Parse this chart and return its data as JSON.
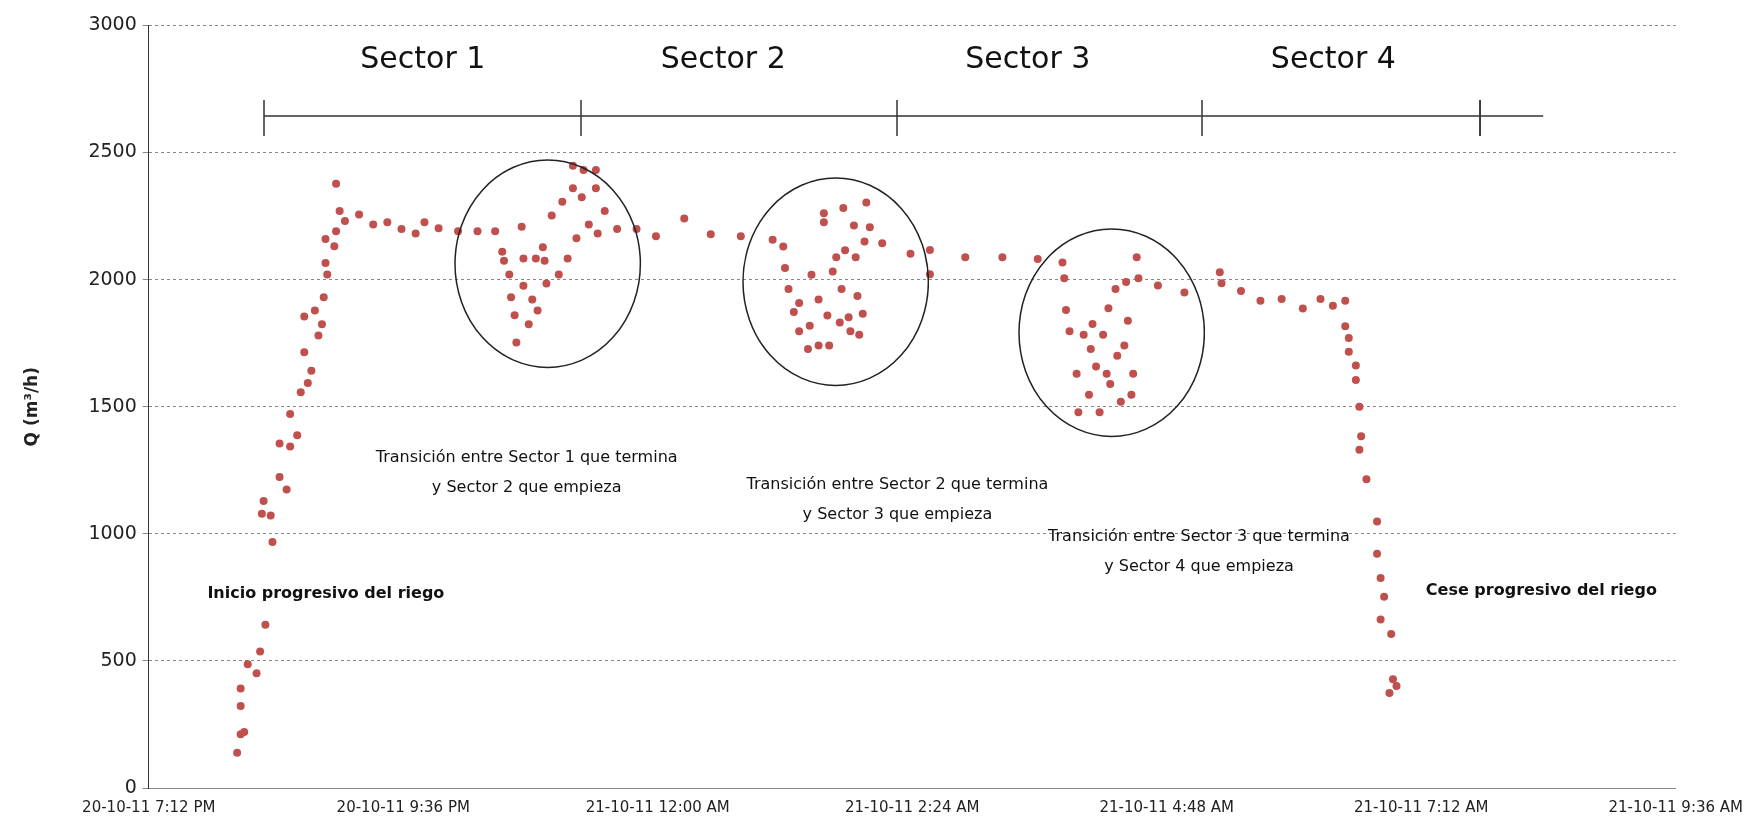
{
  "chart_data": {
    "type": "scatter",
    "ylabel": "Q (m³/h)",
    "marker": "circle",
    "grid": "y",
    "legend": false,
    "xlim": [
      "--10-20T19:12",
      "--10-21T09:36"
    ],
    "ylim": [
      0,
      3000
    ],
    "yticks": [
      0,
      500,
      1000,
      1500,
      2000,
      2500,
      3000
    ],
    "xticks": [
      {
        "value": "--10-20T19:12",
        "label": "20-10-11 7:12 PM"
      },
      {
        "value": "--10-20T21:36",
        "label": "20-10-11 9:36 PM"
      },
      {
        "value": "--10-21T00:00",
        "label": "21-10-11 12:00 AM"
      },
      {
        "value": "--10-21T02:24",
        "label": "21-10-11 2:24 AM"
      },
      {
        "value": "--10-21T04:48",
        "label": "21-10-11 4:48 AM"
      },
      {
        "value": "--10-21T07:12",
        "label": "21-10-11 7:12 AM"
      },
      {
        "value": "--10-21T09:36",
        "label": "21-10-11 9:36 AM"
      }
    ],
    "x": [
      "--10-20T20:02",
      "--10-20T20:04",
      "--10-20T20:06",
      "--10-20T20:04",
      "--10-20T20:04",
      "--10-20T20:08",
      "--10-20T20:13",
      "--10-20T20:15",
      "--10-20T20:18",
      "--10-20T20:22",
      "--10-20T20:16",
      "--10-20T20:21",
      "--10-20T20:17",
      "--10-20T20:26",
      "--10-20T20:30",
      "--10-20T20:26",
      "--10-20T20:32",
      "--10-20T20:32",
      "--10-20T20:36",
      "--10-20T20:38",
      "--10-20T20:42",
      "--10-20T20:40",
      "--10-20T20:44",
      "--10-20T20:40",
      "--10-20T20:46",
      "--10-20T20:48",
      "--10-20T20:50",
      "--10-20T20:51",
      "--10-20T20:53",
      "--10-20T20:52",
      "--10-20T20:52",
      "--10-20T20:57",
      "--10-20T20:58",
      "--10-20T20:58",
      "--10-20T21:00",
      "--10-20T21:03",
      "--10-20T21:11",
      "--10-20T21:19",
      "--10-20T21:27",
      "--10-20T21:35",
      "--10-20T21:43",
      "--10-20T21:48",
      "--10-20T21:56",
      "--10-20T22:07",
      "--10-20T22:18",
      "--10-20T22:28",
      "--10-20T22:32",
      "--10-20T22:33",
      "--10-20T22:36",
      "--10-20T22:37",
      "--10-20T22:39",
      "--10-20T22:40",
      "--10-20T22:43",
      "--10-20T22:44",
      "--10-20T22:44",
      "--10-20T22:47",
      "--10-20T22:49",
      "--10-20T22:52",
      "--10-20T22:51",
      "--10-20T22:55",
      "--10-20T22:56",
      "--10-20T22:57",
      "--10-20T23:00",
      "--10-20T23:04",
      "--10-20T23:06",
      "--10-20T23:09",
      "--10-20T23:12",
      "--10-20T23:12",
      "--10-20T23:14",
      "--10-20T23:17",
      "--10-20T23:18",
      "--10-20T23:21",
      "--10-20T23:25",
      "--10-20T23:25",
      "--10-20T23:26",
      "--10-20T23:30",
      "--10-20T23:37",
      "--10-20T23:48",
      "--10-20T23:59",
      "--10-21T00:15",
      "--10-21T00:30",
      "--10-21T00:47",
      "--10-21T01:05",
      "--10-21T01:11",
      "--10-21T01:12",
      "--10-21T01:14",
      "--10-21T01:20",
      "--10-21T01:17",
      "--10-21T01:20",
      "--10-21T01:25",
      "--10-21T01:26",
      "--10-21T01:27",
      "--10-21T01:31",
      "--10-21T01:31",
      "--10-21T01:34",
      "--10-21T01:34",
      "--10-21T01:36",
      "--10-21T01:37",
      "--10-21T01:39",
      "--10-21T01:41",
      "--10-21T01:43",
      "--10-21T01:44",
      "--10-21T01:45",
      "--10-21T01:46",
      "--10-21T01:48",
      "--10-21T01:49",
      "--10-21T01:51",
      "--10-21T01:52",
      "--10-21T01:53",
      "--10-21T01:54",
      "--10-21T01:56",
      "--10-21T01:58",
      "--10-21T02:00",
      "--10-21T01:57",
      "--10-21T02:07",
      "--10-21T02:23",
      "--10-21T02:34",
      "--10-21T02:34",
      "--10-21T02:54",
      "--10-21T03:15",
      "--10-21T03:35",
      "--10-21T03:49",
      "--10-21T03:50",
      "--10-21T03:51",
      "--10-21T03:53",
      "--10-21T03:57",
      "--10-21T03:58",
      "--10-21T04:01",
      "--10-21T04:04",
      "--10-21T04:05",
      "--10-21T04:06",
      "--10-21T04:08",
      "--10-21T04:10",
      "--10-21T04:12",
      "--10-21T04:14",
      "--10-21T04:15",
      "--10-21T04:16",
      "--10-21T04:19",
      "--10-21T04:20",
      "--10-21T04:22",
      "--10-21T04:24",
      "--10-21T04:26",
      "--10-21T04:25",
      "--10-21T04:29",
      "--10-21T04:28",
      "--10-21T04:31",
      "--10-21T04:32",
      "--10-21T04:43",
      "--10-21T04:58",
      "--10-21T05:18",
      "--10-21T05:19",
      "--10-21T05:30",
      "--10-21T05:41",
      "--10-21T05:53",
      "--10-21T06:05",
      "--10-21T06:15",
      "--10-21T06:22",
      "--10-21T06:29",
      "--10-21T06:29",
      "--10-21T06:31",
      "--10-21T06:31",
      "--10-21T06:35",
      "--10-21T06:35",
      "--10-21T06:37",
      "--10-21T06:38",
      "--10-21T06:37",
      "--10-21T06:41",
      "--10-21T06:47",
      "--10-21T06:47",
      "--10-21T06:49",
      "--10-21T06:51",
      "--10-21T06:49",
      "--10-21T06:55",
      "--10-21T06:56",
      "--10-21T06:54",
      "--10-21T06:58"
    ],
    "series": [
      {
        "color": "#c0504d",
        "values": [
          139,
          211,
          220,
          323,
          391,
          487,
          451,
          537,
          642,
          968,
          1079,
          1072,
          1129,
          1223,
          1174,
          1355,
          1343,
          1471,
          1388,
          1557,
          1593,
          1714,
          1641,
          1855,
          1878,
          1780,
          1824,
          1931,
          2020,
          2065,
          2160,
          2131,
          2190,
          2377,
          2270,
          2231,
          2256,
          2217,
          2226,
          2199,
          2181,
          2226,
          2202,
          2190,
          2190,
          2190,
          2110,
          2074,
          2020,
          1931,
          1860,
          1753,
          2208,
          2083,
          1976,
          1824,
          1922,
          1878,
          2083,
          2127,
          2074,
          1985,
          2252,
          2020,
          2306,
          2083,
          2448,
          2359,
          2163,
          2324,
          2431,
          2217,
          2431,
          2359,
          2181,
          2270,
          2199,
          2199,
          2171,
          2240,
          2178,
          2171,
          2157,
          2130,
          2046,
          1963,
          1908,
          1873,
          1797,
          1727,
          1818,
          2019,
          1922,
          1741,
          2261,
          2226,
          1859,
          1741,
          2032,
          2088,
          1831,
          1963,
          2282,
          2115,
          1852,
          1797,
          2213,
          2088,
          1935,
          1783,
          1866,
          2303,
          2206,
          2150,
          2143,
          2102,
          2116,
          2021,
          2088,
          2088,
          2081,
          2067,
          2005,
          1880,
          1797,
          1630,
          1478,
          1783,
          1547,
          1727,
          1825,
          1658,
          1478,
          1783,
          1630,
          1887,
          1589,
          1963,
          1700,
          1519,
          1741,
          1838,
          1991,
          1630,
          1547,
          2088,
          2005,
          1977,
          1949,
          2029,
          1986,
          1955,
          1917,
          1924,
          1886,
          1924,
          1897,
          1917,
          1816,
          1770,
          1716,
          1662,
          1605,
          1500,
          1384,
          1331,
          1215,
          1048,
          922,
          826,
          752,
          663,
          606,
          428,
          374,
          401
        ]
      }
    ],
    "annotations": [
      "Sector 1",
      "Sector 2",
      "Sector 3",
      "Sector 4",
      "Transición entre Sector 1 que termina\ny Sector 2 que empieza",
      "Transición entre Sector 2 que termina\ny Sector 3 que empieza",
      "Transición entre Sector 3 que termina\ny Sector 4 que empieza",
      "Inicio progresivo del riego",
      "Cese progresivo del riego"
    ]
  }
}
